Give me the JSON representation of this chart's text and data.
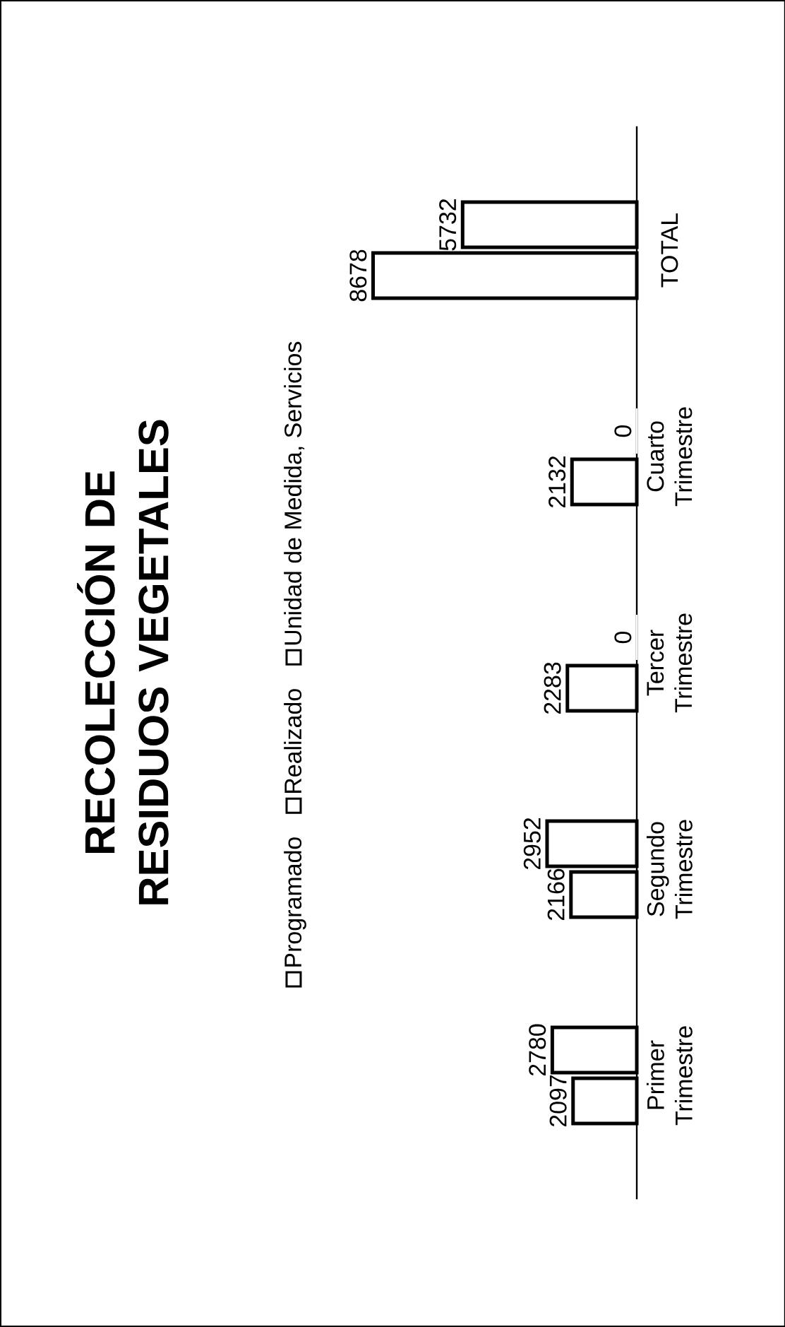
{
  "chart_data": {
    "type": "bar",
    "title": "RECOLECCIÓN DE RESIDUOS VEGETALES",
    "categories": [
      "TOTAL",
      "Cuarto Trimestre",
      "Tercer Trimestre",
      "Segundo Trimestre",
      "Primer Trimestre"
    ],
    "orientation": "horizontal",
    "series": [
      {
        "name": "Programado",
        "color": "#ffffff",
        "values": [
          8678,
          2132,
          2283,
          2166,
          2097
        ]
      },
      {
        "name": "Realizado",
        "color": "#ffffff",
        "values": [
          5732,
          0,
          0,
          2952,
          2780
        ]
      },
      {
        "name": "Unidad de Medida, Servicios",
        "values": [
          null,
          null,
          null,
          null,
          null
        ]
      }
    ],
    "data_labels": true,
    "legend": "left"
  }
}
